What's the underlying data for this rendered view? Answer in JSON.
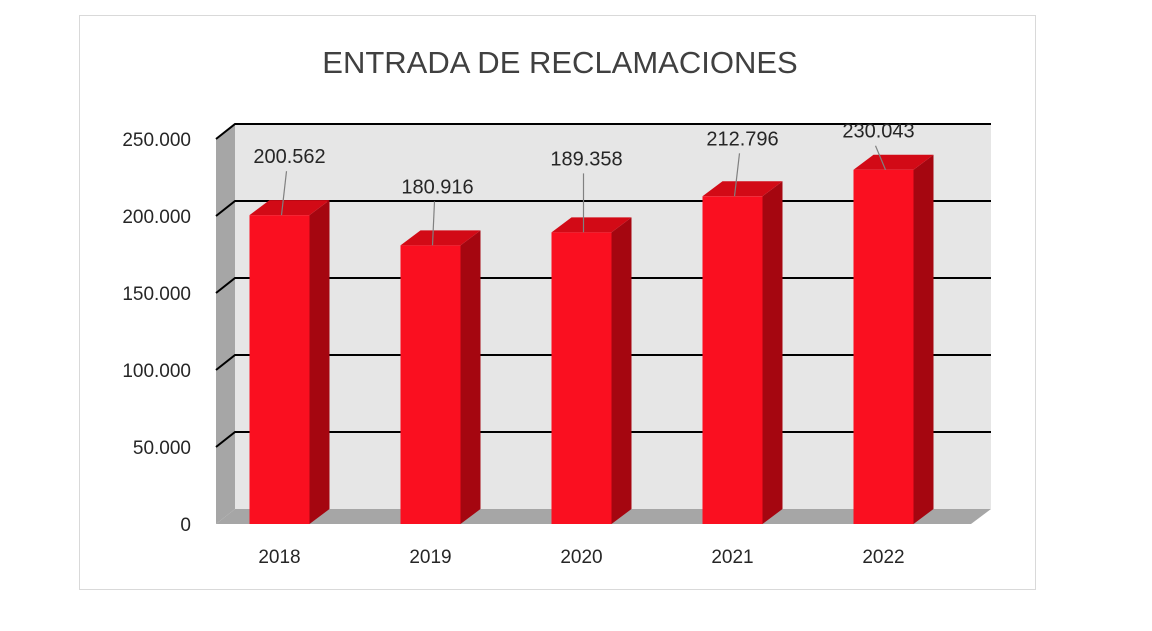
{
  "chart_data": {
    "type": "bar",
    "style": "3d-column",
    "title": "ENTRADA DE RECLAMACIONES",
    "categories": [
      "2018",
      "2019",
      "2020",
      "2021",
      "2022"
    ],
    "values": [
      200562,
      180916,
      189358,
      212796,
      230043
    ],
    "data_labels": [
      "200.562",
      "180.916",
      "189.358",
      "212.796",
      "230.043"
    ],
    "y_ticks": [
      0,
      50000,
      100000,
      150000,
      200000,
      250000
    ],
    "y_tick_labels": [
      "0",
      "50.000",
      "100.000",
      "150.000",
      "200.000",
      "250.000"
    ],
    "ylim": [
      0,
      250000
    ],
    "xlabel": "",
    "ylabel": "",
    "grid": true,
    "legend": "none",
    "colors": {
      "bar_front": "#fa0f20",
      "bar_side": "#a50610",
      "bar_top": "#d20a16",
      "wall": "#e6e6e6",
      "side_wall": "#a6a6a6",
      "floor": "#a6a6a6",
      "gridline": "#000000",
      "leader": "#808080"
    }
  }
}
